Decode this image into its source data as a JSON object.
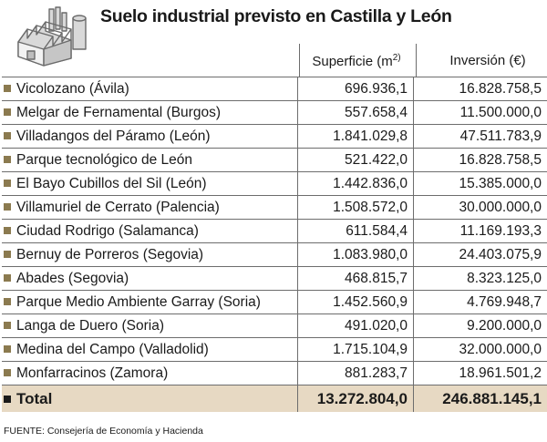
{
  "title": "Suelo industrial previsto en Castilla y León",
  "columns": {
    "superficie_label": "Superficie (m",
    "superficie_exp": "2)",
    "inversion_label": "Inversión (€)"
  },
  "rows": [
    {
      "name": "Vicolozano (Ávila)",
      "superficie": "696.936,1",
      "inversion": "16.828.758,5"
    },
    {
      "name": "Melgar de Fernamental (Burgos)",
      "superficie": "557.658,4",
      "inversion": "11.500.000,0"
    },
    {
      "name": "Villadangos del Páramo (León)",
      "superficie": "1.841.029,8",
      "inversion": "47.511.783,9"
    },
    {
      "name": "Parque tecnológico de León",
      "superficie": "521.422,0",
      "inversion": "16.828.758,5"
    },
    {
      "name": "El Bayo Cubillos del Sil (León)",
      "superficie": "1.442.836,0",
      "inversion": "15.385.000,0"
    },
    {
      "name": "Villamuriel de Cerrato (Palencia)",
      "superficie": "1.508.572,0",
      "inversion": "30.000.000,0"
    },
    {
      "name": "Ciudad Rodrigo (Salamanca)",
      "superficie": "611.584,4",
      "inversion": "11.169.193,3"
    },
    {
      "name": "Bernuy de Porreros (Segovia)",
      "superficie": "1.083.980,0",
      "inversion": "24.403.075,9"
    },
    {
      "name": "Abades (Segovia)",
      "superficie": "468.815,7",
      "inversion": "8.323.125,0"
    },
    {
      "name": "Parque Medio Ambiente Garray (Soria)",
      "superficie": "1.452.560,9",
      "inversion": "4.769.948,7"
    },
    {
      "name": "Langa de Duero (Soria)",
      "superficie": "491.020,0",
      "inversion": "9.200.000,0"
    },
    {
      "name": "Medina del Campo (Valladolid)",
      "superficie": "1.715.104,9",
      "inversion": "32.000.000,0"
    },
    {
      "name": "Monfarracinos (Zamora)",
      "superficie": "881.283,7",
      "inversion": "18.961.501,2"
    }
  ],
  "total": {
    "name": "Total",
    "superficie": "13.272.804,0",
    "inversion": "246.881.145,1"
  },
  "source": "FUENTE: Consejería de Economía y Hacienda",
  "colors": {
    "bullet": "#8b7a4f",
    "total_bg": "#e7d9c3",
    "rule": "#6d6d6d"
  },
  "icon": "factory-icon"
}
